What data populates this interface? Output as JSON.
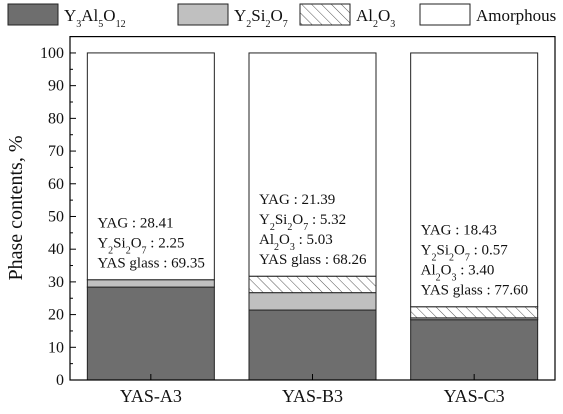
{
  "chart_data": {
    "type": "stacked_bar",
    "y_label": "Phase contents, %",
    "categories": [
      "YAS-A3",
      "YAS-B3",
      "YAS-C3"
    ],
    "series": [
      {
        "name": "Y3Al5O12",
        "color": "#6e6e6e",
        "values": [
          28.41,
          21.39,
          18.43
        ]
      },
      {
        "name": "Y2Si2O7",
        "color": "#c0c0c0",
        "values": [
          2.25,
          5.32,
          0.57
        ]
      },
      {
        "name": "Al2O3",
        "color": "#ffffff",
        "hatch": true,
        "values": [
          0,
          5.03,
          3.4
        ]
      },
      {
        "name": "Amorphous",
        "color": "#ffffff",
        "values": [
          69.35,
          68.26,
          77.6
        ]
      }
    ],
    "annotations": [
      [
        "YAG : 28.41",
        "Y2Si2O7 : 2.25",
        "YAS glass : 69.35"
      ],
      [
        "YAG : 21.39",
        "Y2Si2O7 : 5.32",
        "Al2O3 : 5.03",
        "YAS glass : 68.26"
      ],
      [
        "YAG : 18.43",
        "Y2Si2O7 : 0.57",
        "Al2O3 : 3.40",
        "YAS glass : 77.60"
      ]
    ],
    "ylim": [
      0,
      105
    ],
    "yticks": [
      0,
      10,
      20,
      30,
      40,
      50,
      60,
      70,
      80,
      90,
      100
    ],
    "grid": false
  }
}
